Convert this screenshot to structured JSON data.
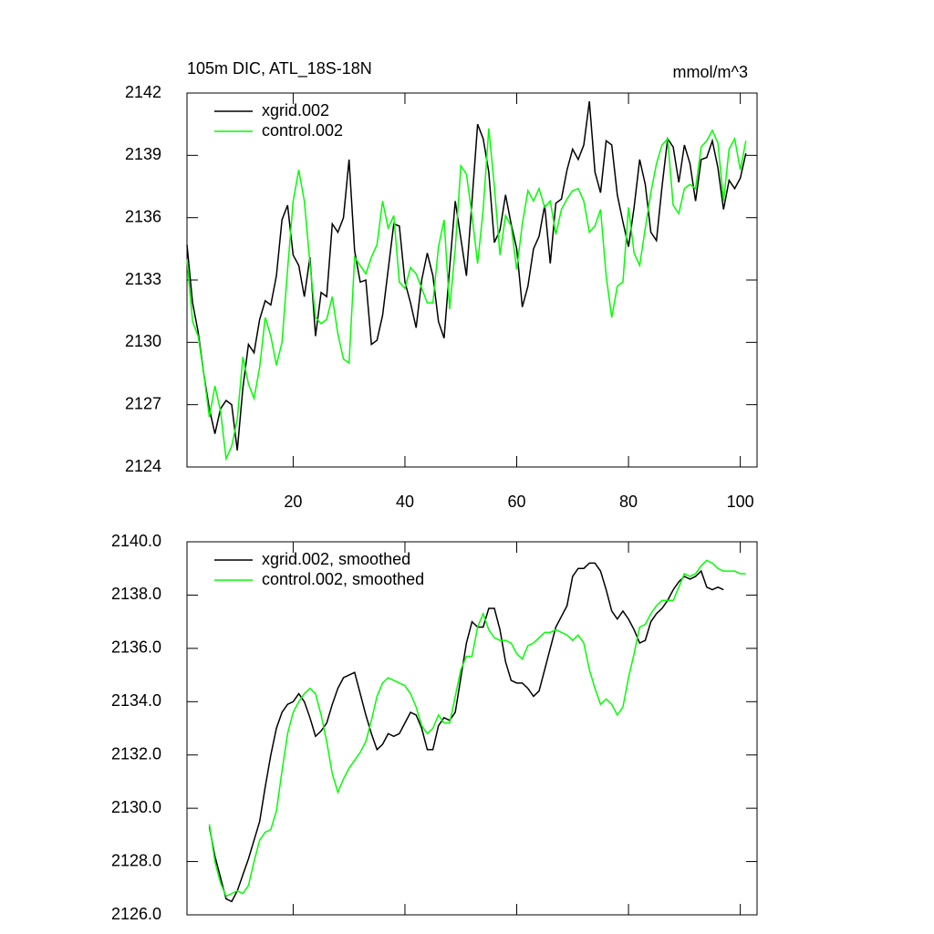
{
  "chart_data": [
    {
      "type": "line",
      "title": "105m DIC, ATL_18S-18N",
      "title_right": "mmol/m^3",
      "x": [
        1,
        2,
        3,
        4,
        5,
        6,
        7,
        8,
        9,
        10,
        11,
        12,
        13,
        14,
        15,
        16,
        17,
        18,
        19,
        20,
        21,
        22,
        23,
        24,
        25,
        26,
        27,
        28,
        29,
        30,
        31,
        32,
        33,
        34,
        35,
        36,
        37,
        38,
        39,
        40,
        41,
        42,
        43,
        44,
        45,
        46,
        47,
        48,
        49,
        50,
        51,
        52,
        53,
        54,
        55,
        56,
        57,
        58,
        59,
        60,
        61,
        62,
        63,
        64,
        65,
        66,
        67,
        68,
        69,
        70,
        71,
        72,
        73,
        74,
        75,
        76,
        77,
        78,
        79,
        80,
        81,
        82,
        83,
        84,
        85,
        86,
        87,
        88,
        89,
        90,
        91,
        92,
        93,
        94,
        95,
        96,
        97,
        98,
        99,
        100,
        101
      ],
      "series": [
        {
          "name": "xgrid.002",
          "color": "#000000",
          "values": [
            2134.7,
            2131.9,
            2130.5,
            2128.5,
            2126.8,
            2125.6,
            2126.8,
            2127.2,
            2127.0,
            2124.8,
            2127.8,
            2129.9,
            2129.5,
            2131.1,
            2132.0,
            2131.8,
            2133.2,
            2135.9,
            2136.6,
            2134.2,
            2133.7,
            2132.2,
            2134.1,
            2130.3,
            2132.4,
            2132.2,
            2135.7,
            2135.3,
            2136.0,
            2138.8,
            2134.4,
            2132.9,
            2133.0,
            2129.9,
            2130.1,
            2131.3,
            2133.5,
            2135.7,
            2135.6,
            2132.9,
            2131.9,
            2130.7,
            2133.0,
            2134.3,
            2133.2,
            2131.0,
            2130.2,
            2133.6,
            2136.8,
            2135.0,
            2133.2,
            2136.8,
            2140.5,
            2139.8,
            2138.2,
            2134.8,
            2135.4,
            2137.1,
            2135.7,
            2134.5,
            2131.7,
            2132.7,
            2134.5,
            2135.1,
            2136.6,
            2133.8,
            2136.7,
            2136.9,
            2138.3,
            2139.3,
            2138.8,
            2139.5,
            2141.6,
            2138.2,
            2137.2,
            2139.7,
            2139.5,
            2137.1,
            2135.8,
            2134.6,
            2136.5,
            2138.8,
            2137.6,
            2135.3,
            2134.9,
            2137.5,
            2139.8,
            2139.4,
            2137.7,
            2139.5,
            2138.6,
            2136.8,
            2138.8,
            2138.9,
            2139.7,
            2138.4,
            2136.4,
            2137.8,
            2137.4,
            2137.9,
            2139.1
          ]
        },
        {
          "name": "control.002",
          "color": "#00ff00",
          "values": [
            2134.0,
            2131.0,
            2130.3,
            2128.5,
            2126.4,
            2127.9,
            2126.7,
            2124.4,
            2125.0,
            2126.3,
            2129.3,
            2128.0,
            2127.3,
            2128.8,
            2131.2,
            2130.3,
            2128.9,
            2130.0,
            2133.5,
            2136.8,
            2138.3,
            2136.8,
            2133.8,
            2131.2,
            2130.9,
            2131.1,
            2132.2,
            2130.4,
            2129.2,
            2129.0,
            2134.1,
            2133.7,
            2133.3,
            2134.1,
            2134.7,
            2136.8,
            2135.5,
            2136.1,
            2132.9,
            2132.6,
            2133.6,
            2133.3,
            2132.6,
            2131.9,
            2131.9,
            2134.6,
            2135.9,
            2131.6,
            2134.5,
            2138.5,
            2138.1,
            2136.1,
            2133.8,
            2136.4,
            2140.3,
            2137.5,
            2134.2,
            2136.1,
            2135.6,
            2133.5,
            2135.7,
            2137.3,
            2136.8,
            2137.4,
            2136.5,
            2136.8,
            2135.2,
            2136.4,
            2136.9,
            2137.3,
            2137.4,
            2136.8,
            2135.3,
            2135.6,
            2136.4,
            2133.2,
            2131.2,
            2132.7,
            2132.9,
            2136.5,
            2134.3,
            2133.7,
            2135.5,
            2137.2,
            2138.6,
            2139.5,
            2139.8,
            2136.6,
            2136.2,
            2137.4,
            2137.6,
            2137.4,
            2139.4,
            2139.7,
            2140.2,
            2139.6,
            2136.8,
            2139.3,
            2139.8,
            2138.3,
            2139.7
          ]
        }
      ],
      "xlim": [
        1,
        103
      ],
      "xticks": [
        20,
        40,
        60,
        80,
        100
      ],
      "ylim": [
        2124,
        2142
      ],
      "yticks": [
        2124,
        2127,
        2130,
        2133,
        2136,
        2139,
        2142
      ],
      "legend": "upper left"
    },
    {
      "type": "line",
      "x": [
        5,
        6,
        7,
        8,
        9,
        10,
        11,
        12,
        13,
        14,
        15,
        16,
        17,
        18,
        19,
        20,
        21,
        22,
        23,
        24,
        25,
        26,
        27,
        28,
        29,
        30,
        31,
        32,
        33,
        34,
        35,
        36,
        37,
        38,
        39,
        40,
        41,
        42,
        43,
        44,
        45,
        46,
        47,
        48,
        49,
        50,
        51,
        52,
        53,
        54,
        55,
        56,
        57,
        58,
        59,
        60,
        61,
        62,
        63,
        64,
        65,
        66,
        67,
        68,
        69,
        70,
        71,
        72,
        73,
        74,
        75,
        76,
        77,
        78,
        79,
        80,
        81,
        82,
        83,
        84,
        85,
        86,
        87,
        88,
        89,
        90,
        91,
        92,
        93,
        94,
        95,
        96,
        97,
        98,
        99,
        100,
        101
      ],
      "series": [
        {
          "name": "xgrid.002, smoothed",
          "color": "#000000",
          "values": [
            2129.3,
            2128.2,
            2127.4,
            2126.6,
            2126.5,
            2126.9,
            2127.5,
            2128.1,
            2128.8,
            2129.5,
            2130.8,
            2132.0,
            2133.0,
            2133.6,
            2133.9,
            2134.0,
            2134.3,
            2134.0,
            2133.4,
            2132.7,
            2132.9,
            2133.2,
            2133.9,
            2134.5,
            2134.9,
            2135.0,
            2135.1,
            2134.3,
            2133.5,
            2132.8,
            2132.2,
            2132.4,
            2132.8,
            2132.7,
            2132.8,
            2133.2,
            2133.6,
            2133.5,
            2133.0,
            2132.2,
            2132.2,
            2133.1,
            2133.4,
            2133.3,
            2133.6,
            2134.9,
            2136.2,
            2137.0,
            2136.8,
            2136.8,
            2137.5,
            2137.5,
            2136.7,
            2135.5,
            2134.8,
            2134.7,
            2134.7,
            2134.5,
            2134.2,
            2134.4,
            2135.2,
            2136.0,
            2136.8,
            2137.2,
            2137.6,
            2138.7,
            2139.0,
            2139.0,
            2139.2,
            2139.2,
            2138.9,
            2138.2,
            2137.4,
            2137.1,
            2137.4,
            2137.1,
            2136.7,
            2136.2,
            2136.3,
            2137.0,
            2137.3,
            2137.5,
            2137.8,
            2138.2,
            2138.5,
            2138.7,
            2138.6,
            2138.7,
            2138.9,
            2138.3,
            2138.2,
            2138.3,
            2138.2,
            null,
            null,
            null,
            null
          ]
        },
        {
          "name": "control.002, smoothed",
          "color": "#00ff00",
          "values": [
            2129.4,
            2128.0,
            2127.2,
            2126.7,
            2126.8,
            2126.9,
            2126.8,
            2127.1,
            2128.0,
            2128.8,
            2129.1,
            2129.2,
            2129.9,
            2131.4,
            2132.8,
            2133.6,
            2134.0,
            2134.3,
            2134.5,
            2134.3,
            2133.5,
            2132.5,
            2131.3,
            2130.6,
            2131.1,
            2131.5,
            2131.8,
            2132.1,
            2132.5,
            2133.3,
            2134.2,
            2134.7,
            2134.9,
            2134.8,
            2134.7,
            2134.6,
            2134.3,
            2133.8,
            2133.1,
            2132.8,
            2133.0,
            2133.5,
            2133.2,
            2133.2,
            2134.2,
            2135.2,
            2135.7,
            2135.7,
            2136.8,
            2137.3,
            2136.7,
            2136.4,
            2136.3,
            2136.3,
            2136.2,
            2135.8,
            2135.6,
            2136.1,
            2136.2,
            2136.4,
            2136.6,
            2136.6,
            2136.7,
            2136.6,
            2136.5,
            2136.3,
            2136.5,
            2136.2,
            2135.2,
            2134.5,
            2133.9,
            2134.1,
            2133.9,
            2133.5,
            2133.8,
            2134.9,
            2135.8,
            2136.8,
            2136.9,
            2137.3,
            2137.6,
            2137.8,
            2137.8,
            2137.8,
            2138.3,
            2138.8,
            2138.7,
            2138.8,
            2139.1,
            2139.3,
            2139.2,
            2139.0,
            2138.9,
            2138.9,
            2138.9,
            2138.8,
            2138.8
          ]
        }
      ],
      "xlim": [
        1,
        103
      ],
      "xticks": [
        20,
        40,
        60,
        80,
        100
      ],
      "ylim": [
        2126,
        2140
      ],
      "yticks": [
        {
          "value": 2126,
          "label": "2126.0"
        },
        {
          "value": 2128,
          "label": "2128.0"
        },
        {
          "value": 2130,
          "label": "2130.0"
        },
        {
          "value": 2132,
          "label": "2132.0"
        },
        {
          "value": 2134,
          "label": "2134.0"
        },
        {
          "value": 2136,
          "label": "2136.0"
        },
        {
          "value": 2138,
          "label": "2138.0"
        },
        {
          "value": 2140,
          "label": "2140.0"
        }
      ],
      "legend": "upper left"
    }
  ]
}
